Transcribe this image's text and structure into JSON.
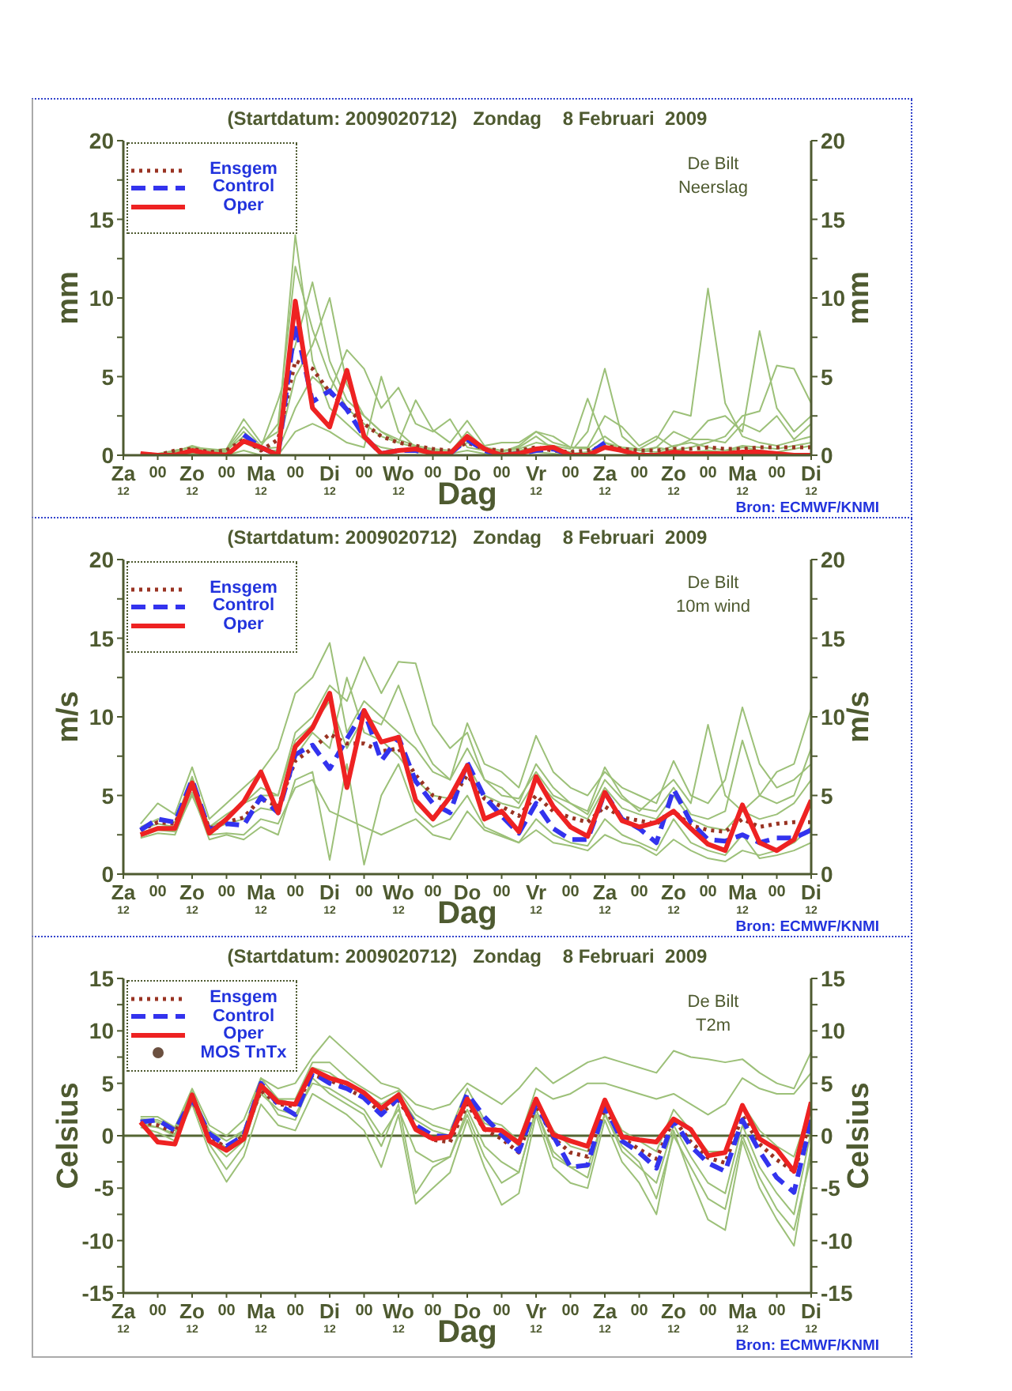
{
  "chart_data": [
    {
      "type": "line",
      "title": "(Startdatum: 2009020712)   Zondag    8 Februari  2009",
      "xlabel": "Dag",
      "ylabel": "mm",
      "y2label": "mm",
      "annotations": [
        "De Bilt",
        "Neerslag",
        "Bron: ECMWF/KNMI"
      ],
      "legend": "top left",
      "marker": "none",
      "line_style": "solid",
      "x": [
        "2009-02-07T18:00",
        "2009-02-08T00:00",
        "2009-02-08T06:00",
        "2009-02-08T12:00",
        "2009-02-08T18:00",
        "2009-02-09T00:00",
        "2009-02-09T06:00",
        "2009-02-09T12:00",
        "2009-02-09T18:00",
        "2009-02-10T00:00",
        "2009-02-10T06:00",
        "2009-02-10T12:00",
        "2009-02-10T18:00",
        "2009-02-11T00:00",
        "2009-02-11T06:00",
        "2009-02-11T12:00",
        "2009-02-11T18:00",
        "2009-02-12T00:00",
        "2009-02-12T06:00",
        "2009-02-12T12:00",
        "2009-02-12T18:00",
        "2009-02-13T00:00",
        "2009-02-13T06:00",
        "2009-02-13T12:00",
        "2009-02-13T18:00",
        "2009-02-14T00:00",
        "2009-02-14T06:00",
        "2009-02-14T12:00",
        "2009-02-14T18:00",
        "2009-02-15T00:00",
        "2009-02-15T06:00",
        "2009-02-15T12:00",
        "2009-02-15T18:00",
        "2009-02-16T00:00",
        "2009-02-16T06:00",
        "2009-02-16T12:00",
        "2009-02-16T18:00",
        "2009-02-17T00:00",
        "2009-02-17T06:00",
        "2009-02-17T12:00"
      ],
      "xlim": [
        "2009-02-07T12:00",
        "2009-02-17T12:00"
      ],
      "xticks": [
        {
          "value": "2009-02-07T12:00",
          "label": "Za\n12"
        },
        {
          "value": "2009-02-08T00:00",
          "label": "00"
        },
        {
          "value": "2009-02-08T12:00",
          "label": "Zo\n12"
        },
        {
          "value": "2009-02-09T00:00",
          "label": "00"
        },
        {
          "value": "2009-02-09T12:00",
          "label": "Ma\n12"
        },
        {
          "value": "2009-02-10T00:00",
          "label": "00"
        },
        {
          "value": "2009-02-10T12:00",
          "label": "Di\n12"
        },
        {
          "value": "2009-02-11T00:00",
          "label": "00"
        },
        {
          "value": "2009-02-11T12:00",
          "label": "Wo\n12"
        },
        {
          "value": "2009-02-12T00:00",
          "label": "00"
        },
        {
          "value": "2009-02-12T12:00",
          "label": "Do"
        },
        {
          "value": "2009-02-13T00:00",
          "label": "00"
        },
        {
          "value": "2009-02-13T12:00",
          "label": "Vr\n12"
        },
        {
          "value": "2009-02-14T00:00",
          "label": "00"
        },
        {
          "value": "2009-02-14T12:00",
          "label": "Za\n12"
        },
        {
          "value": "2009-02-15T00:00",
          "label": "00"
        },
        {
          "value": "2009-02-15T12:00",
          "label": "Zo\n12"
        },
        {
          "value": "2009-02-16T00:00",
          "label": "00"
        },
        {
          "value": "2009-02-16T12:00",
          "label": "Ma\n12"
        },
        {
          "value": "2009-02-17T00:00",
          "label": "00"
        },
        {
          "value": "2009-02-17T12:00",
          "label": "Di\n12"
        }
      ],
      "ylim": [
        0,
        20
      ],
      "yticks": [
        0,
        {
          "value": 2.5,
          "label": null
        },
        5,
        {
          "value": 7.5,
          "label": null
        },
        10,
        {
          "value": 12.5,
          "label": null
        },
        15,
        {
          "value": 17.5,
          "label": null
        },
        20
      ],
      "y2lim": [
        0,
        20
      ],
      "y2ticks": [
        0,
        {
          "value": 2.5,
          "label": null
        },
        5,
        {
          "value": 7.5,
          "label": null
        },
        10,
        {
          "value": 12.5,
          "label": null
        },
        15,
        {
          "value": 17.5,
          "label": null
        },
        20
      ],
      "series": [
        {
          "color": "#9cc078",
          "values": [
            0,
            0,
            0.2,
            0.6,
            0.3,
            0.4,
            2.3,
            0.8,
            1.5,
            14,
            6,
            3,
            2,
            1,
            0.5,
            0.3,
            0.2,
            0.1,
            0.2,
            1.5,
            0.4,
            0.1,
            0.3,
            0.5,
            0.3,
            0.1,
            0.2,
            0.8,
            0.3,
            0.1,
            0.1,
            0.4,
            0.2,
            0.3,
            0.2,
            0.5,
            0.3,
            0.2,
            0.4,
            0.6
          ]
        },
        {
          "color": "#9cc078",
          "values": [
            0,
            0.1,
            0.3,
            0.5,
            0.4,
            0.3,
            1.5,
            0.5,
            3.5,
            7,
            11,
            6,
            3.5,
            2.5,
            1.5,
            0.8,
            0.5,
            0.3,
            0.2,
            0.8,
            0.3,
            0.2,
            0.5,
            1.2,
            0.4,
            0.2,
            1.5,
            5.5,
            1.2,
            0.3,
            0.2,
            0.6,
            0.8,
            0.5,
            0.3,
            0.6,
            0.5,
            0.4,
            0.6,
            0.8
          ]
        },
        {
          "color": "#9cc078",
          "values": [
            0,
            0,
            0.2,
            0.3,
            0.2,
            0.3,
            1.2,
            0.4,
            0.5,
            5,
            7,
            10,
            4.5,
            2.5,
            1.5,
            1,
            0.6,
            0.4,
            0.3,
            1,
            0.5,
            0.3,
            0.4,
            0.8,
            0.6,
            0.4,
            3.6,
            0.8,
            0.5,
            0.4,
            1,
            2.8,
            2.5,
            10.6,
            3.3,
            1.2,
            0.8,
            0.6,
            0.9,
            1.2
          ]
        },
        {
          "color": "#9cc078",
          "values": [
            0,
            0,
            0.1,
            0.4,
            0.2,
            0.2,
            0.8,
            0.3,
            0.3,
            3,
            5,
            4,
            6.7,
            5.5,
            3,
            4.3,
            2,
            1.5,
            2.3,
            0.5,
            0.3,
            0.2,
            0.6,
            1.5,
            0.8,
            0.5,
            0.5,
            2.5,
            1.8,
            0.6,
            1.2,
            0.5,
            1,
            2.2,
            2.5,
            1.5,
            7.9,
            3,
            1.5,
            2.5
          ]
        },
        {
          "color": "#9cc078",
          "values": [
            0,
            0,
            0,
            0.1,
            0,
            0,
            0.3,
            0,
            0,
            1.5,
            2,
            1.5,
            0.8,
            0.5,
            5,
            1.5,
            0.5,
            0.2,
            0.1,
            0.3,
            0.1,
            0,
            0.1,
            0.2,
            0.1,
            0,
            0.1,
            0.5,
            0.2,
            0.1,
            0.5,
            0.3,
            0.5,
            0.8,
            1.2,
            2.5,
            2.8,
            5.7,
            5.5,
            3.3
          ]
        },
        {
          "color": "#9cc078",
          "values": [
            0,
            0,
            0.3,
            0.5,
            0.3,
            0.4,
            1.8,
            0.6,
            2,
            12,
            8,
            5,
            3,
            2,
            1.2,
            0.8,
            3.5,
            1.6,
            0.8,
            2.2,
            0.6,
            0.8,
            0.8,
            1.5,
            1.2,
            0.5,
            0.4,
            1.2,
            0.4,
            0.3,
            0.5,
            1.5,
            1,
            1,
            0.8,
            2,
            1.5,
            2.5,
            1,
            2
          ]
        },
        {
          "name": "Ensgem",
          "color": "#993322",
          "line_style": "dotted",
          "values": [
            0.1,
            0,
            0.3,
            0.4,
            0.2,
            0.3,
            1,
            0.3,
            1,
            6,
            5.5,
            4,
            3,
            2,
            1.2,
            0.8,
            0.6,
            0.4,
            0.3,
            0.8,
            0.4,
            0.3,
            0.3,
            0.5,
            0.3,
            0.2,
            0.3,
            0.6,
            0.4,
            0.3,
            0.3,
            0.4,
            0.4,
            0.5,
            0.4,
            0.4,
            0.5,
            0.5,
            0.5,
            0.5
          ]
        },
        {
          "name": "Control",
          "color": "#3333ee",
          "line_style": "dashed",
          "values": [
            null,
            null,
            null,
            null,
            null,
            null,
            1.3,
            0.5,
            0,
            8.4,
            3.4,
            4.1,
            2.9,
            1.2,
            0.1,
            0.3,
            0.3,
            0.1,
            0.1,
            1,
            0.3,
            0,
            0.1,
            0.3,
            0.4,
            0,
            0,
            0.8,
            null,
            null,
            null,
            null,
            null,
            null,
            null,
            null,
            null,
            null,
            null,
            null
          ]
        },
        {
          "name": "Oper",
          "color": "#ee2222",
          "line_style": "solid",
          "values": [
            0.1,
            0,
            0,
            0.3,
            0.1,
            0,
            0.9,
            0.5,
            0,
            9.8,
            3,
            1.8,
            5.4,
            1.2,
            0.1,
            0.3,
            0.4,
            0.1,
            0.1,
            1.2,
            0.4,
            0,
            0.1,
            0.4,
            0.5,
            0,
            0,
            0.5,
            0.3,
            0,
            0,
            0.2,
            0.1,
            0.1,
            0.1,
            0.2,
            0.2,
            0.1,
            0,
            0
          ]
        }
      ]
    },
    {
      "type": "line",
      "title": "(Startdatum: 2009020712)   Zondag    8 Februari  2009",
      "xlabel": "Dag",
      "ylabel": "m/s",
      "y2label": "m/s",
      "annotations": [
        "De Bilt",
        "10m wind",
        "Bron: ECMWF/KNMI"
      ],
      "legend": "top left",
      "marker": "none",
      "line_style": "solid",
      "x": [
        "2009-02-07T18:00",
        "2009-02-08T00:00",
        "2009-02-08T06:00",
        "2009-02-08T12:00",
        "2009-02-08T18:00",
        "2009-02-09T00:00",
        "2009-02-09T06:00",
        "2009-02-09T12:00",
        "2009-02-09T18:00",
        "2009-02-10T00:00",
        "2009-02-10T06:00",
        "2009-02-10T12:00",
        "2009-02-10T18:00",
        "2009-02-11T00:00",
        "2009-02-11T06:00",
        "2009-02-11T12:00",
        "2009-02-11T18:00",
        "2009-02-12T00:00",
        "2009-02-12T06:00",
        "2009-02-12T12:00",
        "2009-02-12T18:00",
        "2009-02-13T00:00",
        "2009-02-13T06:00",
        "2009-02-13T12:00",
        "2009-02-13T18:00",
        "2009-02-14T00:00",
        "2009-02-14T06:00",
        "2009-02-14T12:00",
        "2009-02-14T18:00",
        "2009-02-15T00:00",
        "2009-02-15T06:00",
        "2009-02-15T12:00",
        "2009-02-15T18:00",
        "2009-02-16T00:00",
        "2009-02-16T06:00",
        "2009-02-16T12:00",
        "2009-02-16T18:00",
        "2009-02-17T00:00",
        "2009-02-17T06:00",
        "2009-02-17T12:00"
      ],
      "xlim": [
        "2009-02-07T12:00",
        "2009-02-17T12:00"
      ],
      "xticks": [
        {
          "value": "2009-02-07T12:00",
          "label": "Za\n12"
        },
        {
          "value": "2009-02-08T00:00",
          "label": "00"
        },
        {
          "value": "2009-02-08T12:00",
          "label": "Zo\n12"
        },
        {
          "value": "2009-02-09T00:00",
          "label": "00"
        },
        {
          "value": "2009-02-09T12:00",
          "label": "Ma\n12"
        },
        {
          "value": "2009-02-10T00:00",
          "label": "00"
        },
        {
          "value": "2009-02-10T12:00",
          "label": "Di\n12"
        },
        {
          "value": "2009-02-11T00:00",
          "label": "00"
        },
        {
          "value": "2009-02-11T12:00",
          "label": "Wo\n12"
        },
        {
          "value": "2009-02-12T00:00",
          "label": "00"
        },
        {
          "value": "2009-02-12T12:00",
          "label": "Do"
        },
        {
          "value": "2009-02-13T00:00",
          "label": "00"
        },
        {
          "value": "2009-02-13T12:00",
          "label": "Vr\n12"
        },
        {
          "value": "2009-02-14T00:00",
          "label": "00"
        },
        {
          "value": "2009-02-14T12:00",
          "label": "Za\n12"
        },
        {
          "value": "2009-02-15T00:00",
          "label": "00"
        },
        {
          "value": "2009-02-15T12:00",
          "label": "Zo\n12"
        },
        {
          "value": "2009-02-16T00:00",
          "label": "00"
        },
        {
          "value": "2009-02-16T12:00",
          "label": "Ma\n12"
        },
        {
          "value": "2009-02-17T00:00",
          "label": "00"
        },
        {
          "value": "2009-02-17T12:00",
          "label": "Di\n12"
        }
      ],
      "ylim": [
        0,
        20
      ],
      "yticks": [
        0,
        {
          "value": 2.5,
          "label": null
        },
        5,
        {
          "value": 7.5,
          "label": null
        },
        10,
        {
          "value": 12.5,
          "label": null
        },
        15,
        {
          "value": 17.5,
          "label": null
        },
        20
      ],
      "y2lim": [
        0,
        20
      ],
      "y2ticks": [
        0,
        {
          "value": 2.5,
          "label": null
        },
        5,
        {
          "value": 7.5,
          "label": null
        },
        10,
        {
          "value": 12.5,
          "label": null
        },
        15,
        {
          "value": 17.5,
          "label": null
        },
        20
      ],
      "series": [
        {
          "color": "#9cc078",
          "values": [
            3.2,
            4.5,
            3.8,
            6.8,
            3.5,
            4.5,
            5.5,
            6.5,
            8,
            11.5,
            12.5,
            14.7,
            9,
            11,
            10,
            9,
            8,
            6.5,
            6,
            9.6,
            7,
            6.5,
            5.5,
            8.8,
            6.5,
            5.5,
            5,
            6.5,
            5.5,
            5,
            4.5,
            7.2,
            5,
            4.5,
            6,
            10.6,
            7,
            5.5,
            6,
            7
          ]
        },
        {
          "color": "#9cc078",
          "values": [
            2.3,
            2.6,
            2.5,
            5.2,
            2.2,
            2.5,
            2.2,
            3,
            2.5,
            6,
            6.5,
            0.9,
            7,
            0.6,
            5,
            7,
            4,
            3,
            3.5,
            5,
            3,
            2.5,
            2,
            3.5,
            2.5,
            2,
            1.8,
            3.5,
            2.5,
            2,
            1.5,
            3.5,
            2,
            1.5,
            1.2,
            2.5,
            1,
            1.2,
            1.5,
            2
          ]
        },
        {
          "color": "#9cc078",
          "values": [
            2.8,
            3.2,
            3,
            6,
            3,
            3.5,
            4.5,
            5.5,
            5,
            9,
            10,
            12,
            11,
            13.8,
            11.5,
            13.5,
            13.4,
            9.5,
            8,
            9,
            6,
            5.5,
            4.5,
            7,
            5.5,
            4.5,
            4,
            6.8,
            5,
            4,
            5,
            6,
            4.5,
            9.5,
            5,
            4,
            5,
            6.5,
            7,
            10.5
          ]
        },
        {
          "color": "#9cc078",
          "values": [
            2.6,
            3,
            3,
            5.5,
            2.8,
            3.2,
            3.5,
            4.2,
            4,
            7.5,
            9,
            8,
            12.5,
            9,
            8.5,
            7.5,
            6,
            5,
            4.8,
            7,
            5,
            4.5,
            4.2,
            6,
            4.8,
            4,
            3.5,
            5.5,
            4.2,
            3.8,
            3.5,
            5,
            3.5,
            3,
            2.8,
            4,
            3.5,
            3.8,
            4.5,
            6
          ]
        },
        {
          "color": "#9cc078",
          "values": [
            2.4,
            2.8,
            2.7,
            5,
            2.5,
            2.6,
            2.5,
            3.5,
            3.2,
            5.5,
            6,
            4,
            3.5,
            3,
            2.5,
            3,
            3.5,
            2.5,
            2.2,
            4,
            2.8,
            2.4,
            2,
            2.8,
            2,
            1.8,
            1.5,
            2.5,
            2,
            1.8,
            1.2,
            2.2,
            1.5,
            1,
            0.8,
            1.5,
            1.2,
            1.5,
            2,
            3
          ]
        },
        {
          "color": "#9cc078",
          "values": [
            3,
            3.5,
            3.3,
            6.2,
            3,
            3.8,
            4.5,
            5,
            5,
            8.5,
            9.5,
            11,
            8,
            10,
            9.5,
            12,
            9,
            7,
            6,
            8,
            6,
            5,
            4.8,
            6.5,
            5,
            4.5,
            3.8,
            6,
            4.8,
            4.2,
            4,
            5.5,
            3.8,
            3.5,
            4,
            8.5,
            5,
            4.5,
            5,
            8
          ]
        },
        {
          "name": "Ensgem",
          "color": "#993322",
          "line_style": "dotted",
          "values": [
            2.8,
            3.3,
            3.2,
            5.7,
            2.9,
            3.3,
            3.6,
            4.8,
            4.3,
            7.2,
            8,
            8.9,
            8.3,
            8.3,
            7.8,
            8,
            6.3,
            5,
            4.6,
            6.3,
            4.8,
            4.3,
            3.7,
            5,
            4,
            3.6,
            3.3,
            4.3,
            3.6,
            3.4,
            3.2,
            4,
            3.1,
            2.8,
            2.7,
            3.5,
            3,
            3.2,
            3.3,
            3.3
          ]
        },
        {
          "name": "Control",
          "color": "#3333ee",
          "line_style": "dashed",
          "values": [
            2.8,
            3.5,
            3.3,
            6,
            2.8,
            3.2,
            3.1,
            4.9,
            3.9,
            7.6,
            8.2,
            6.7,
            8.6,
            10.4,
            7.2,
            8.7,
            5.9,
            4.5,
            3.9,
            7.1,
            4.9,
            3.7,
            2.6,
            4.5,
            2.9,
            2.2,
            2.2,
            5.2,
            3.5,
            2.9,
            2,
            5.4,
            3.3,
            2.2,
            2.1,
            2.5,
            2,
            2.3,
            2.3,
            2.8
          ]
        },
        {
          "name": "Oper",
          "color": "#ee2222",
          "line_style": "solid",
          "values": [
            2.5,
            2.9,
            2.9,
            5.8,
            2.6,
            3.5,
            4.6,
            6.5,
            3.9,
            8.1,
            9.3,
            11.5,
            5.5,
            10.4,
            8.4,
            8.7,
            4.7,
            3.5,
            4.9,
            6.9,
            3.5,
            4,
            2.7,
            6.2,
            4.3,
            3,
            2.4,
            5.2,
            3.4,
            3,
            3.3,
            4,
            2.9,
            1.9,
            1.5,
            4.4,
            2,
            1.5,
            2.2,
            4.7
          ]
        }
      ]
    },
    {
      "type": "line",
      "title": "(Startdatum: 2009020712)   Zondag    8 Februari  2009",
      "xlabel": "Dag",
      "ylabel": "Celsius",
      "y2label": "Celsius",
      "annotations": [
        "De Bilt",
        "T2m",
        "Bron: ECMWF/KNMI"
      ],
      "legend": "top left",
      "marker": "none",
      "line_style": "solid",
      "x": [
        "2009-02-07T18:00",
        "2009-02-08T00:00",
        "2009-02-08T06:00",
        "2009-02-08T12:00",
        "2009-02-08T18:00",
        "2009-02-09T00:00",
        "2009-02-09T06:00",
        "2009-02-09T12:00",
        "2009-02-09T18:00",
        "2009-02-10T00:00",
        "2009-02-10T06:00",
        "2009-02-10T12:00",
        "2009-02-10T18:00",
        "2009-02-11T00:00",
        "2009-02-11T06:00",
        "2009-02-11T12:00",
        "2009-02-11T18:00",
        "2009-02-12T00:00",
        "2009-02-12T06:00",
        "2009-02-12T12:00",
        "2009-02-12T18:00",
        "2009-02-13T00:00",
        "2009-02-13T06:00",
        "2009-02-13T12:00",
        "2009-02-13T18:00",
        "2009-02-14T00:00",
        "2009-02-14T06:00",
        "2009-02-14T12:00",
        "2009-02-14T18:00",
        "2009-02-15T00:00",
        "2009-02-15T06:00",
        "2009-02-15T12:00",
        "2009-02-15T18:00",
        "2009-02-16T00:00",
        "2009-02-16T06:00",
        "2009-02-16T12:00",
        "2009-02-16T18:00",
        "2009-02-17T00:00",
        "2009-02-17T06:00",
        "2009-02-17T12:00"
      ],
      "xlim": [
        "2009-02-07T12:00",
        "2009-02-17T12:00"
      ],
      "xticks": [
        {
          "value": "2009-02-07T12:00",
          "label": "Za\n12"
        },
        {
          "value": "2009-02-08T00:00",
          "label": "00"
        },
        {
          "value": "2009-02-08T12:00",
          "label": "Zo\n12"
        },
        {
          "value": "2009-02-09T00:00",
          "label": "00"
        },
        {
          "value": "2009-02-09T12:00",
          "label": "Ma\n12"
        },
        {
          "value": "2009-02-10T00:00",
          "label": "00"
        },
        {
          "value": "2009-02-10T12:00",
          "label": "Di\n12"
        },
        {
          "value": "2009-02-11T00:00",
          "label": "00"
        },
        {
          "value": "2009-02-11T12:00",
          "label": "Wo\n12"
        },
        {
          "value": "2009-02-12T00:00",
          "label": "00"
        },
        {
          "value": "2009-02-12T12:00",
          "label": "Do"
        },
        {
          "value": "2009-02-13T00:00",
          "label": "00"
        },
        {
          "value": "2009-02-13T12:00",
          "label": "Vr\n12"
        },
        {
          "value": "2009-02-14T00:00",
          "label": "00"
        },
        {
          "value": "2009-02-14T12:00",
          "label": "Za\n12"
        },
        {
          "value": "2009-02-15T00:00",
          "label": "00"
        },
        {
          "value": "2009-02-15T12:00",
          "label": "Zo\n12"
        },
        {
          "value": "2009-02-16T00:00",
          "label": "00"
        },
        {
          "value": "2009-02-16T12:00",
          "label": "Ma\n12"
        },
        {
          "value": "2009-02-17T00:00",
          "label": "00"
        },
        {
          "value": "2009-02-17T12:00",
          "label": "Di\n12"
        }
      ],
      "ylim": [
        -15,
        15
      ],
      "yticks": [
        -15,
        {
          "value": -12.5,
          "label": null
        },
        -10,
        {
          "value": -7.5,
          "label": null
        },
        -5,
        {
          "value": -2.5,
          "label": null
        },
        0,
        {
          "value": 2.5,
          "label": null
        },
        5,
        {
          "value": 7.5,
          "label": null
        },
        10,
        {
          "value": 12.5,
          "label": null
        },
        15
      ],
      "y2lim": [
        -15,
        15
      ],
      "y2ticks": [
        -15,
        {
          "value": -12.5,
          "label": null
        },
        -10,
        {
          "value": -7.5,
          "label": null
        },
        -5,
        {
          "value": -2.5,
          "label": null
        },
        0,
        {
          "value": 2.5,
          "label": null
        },
        5,
        {
          "value": 7.5,
          "label": null
        },
        10,
        {
          "value": 12.5,
          "label": null
        },
        15
      ],
      "ref_lines": [
        {
          "axis": "y",
          "value": 0,
          "color": "#556633"
        }
      ],
      "series": [
        {
          "color": "#9cc078",
          "values": [
            1.8,
            1.8,
            0.8,
            4.5,
            1,
            0,
            1.5,
            5.5,
            4.5,
            5,
            7.5,
            9.5,
            8,
            6.5,
            5,
            4.5,
            3,
            2.5,
            3,
            5,
            4,
            3,
            4.5,
            6.5,
            5,
            6,
            7,
            7.5,
            7,
            6.5,
            6,
            8.1,
            7.5,
            7.3,
            7,
            7.3,
            6,
            5,
            4.5,
            8
          ]
        },
        {
          "color": "#9cc078",
          "values": [
            0.8,
            0.3,
            -0.5,
            3,
            -1.5,
            -4.4,
            -2,
            3,
            1,
            0.5,
            4,
            3,
            2,
            0.5,
            -3,
            2,
            -6.5,
            -5,
            -3.5,
            1.5,
            -3,
            -6.6,
            -5.5,
            2,
            -3,
            -4.5,
            -5,
            1.5,
            -2.5,
            -4.5,
            -7.5,
            0.5,
            -4,
            -8,
            -9,
            -0.5,
            -5,
            -8,
            -10.5,
            -1
          ]
        },
        {
          "color": "#9cc078",
          "values": [
            1.5,
            1.3,
            0.5,
            4,
            0.5,
            -0.5,
            0.5,
            5.5,
            3.5,
            3.5,
            7,
            7,
            5.5,
            4.5,
            3.5,
            4.3,
            2,
            1,
            0.5,
            4.5,
            1.5,
            1,
            -0.5,
            4.5,
            3.5,
            4,
            5,
            5,
            4.5,
            4,
            3.5,
            4,
            3,
            2,
            3,
            5.5,
            4.5,
            4,
            4,
            6
          ]
        },
        {
          "color": "#9cc078",
          "values": [
            1,
            0.8,
            0,
            3.2,
            -0.5,
            -2,
            -0.5,
            4,
            2.5,
            2,
            5,
            4.5,
            3.5,
            2.5,
            0,
            2.5,
            -1.5,
            -2.5,
            -2,
            2.5,
            -1,
            -2.5,
            -3.5,
            2.5,
            -1.5,
            -3,
            -4,
            2.2,
            -1.5,
            -3,
            -4.5,
            1,
            -2,
            -4.5,
            -5.5,
            1,
            -3,
            -5.5,
            -7.5,
            0.5
          ]
        },
        {
          "color": "#9cc078",
          "values": [
            1.6,
            1.5,
            0.8,
            4.2,
            0.2,
            -1.2,
            0.5,
            5,
            3.5,
            3,
            6.5,
            6,
            4.8,
            4,
            3,
            4,
            1.5,
            0.5,
            0,
            3.8,
            1.2,
            0.5,
            -1,
            3.5,
            0.5,
            -1,
            -1.5,
            3.5,
            0.5,
            -0.5,
            -1.5,
            2.5,
            0.5,
            -1.5,
            -1.5,
            3,
            0.5,
            -1,
            -2,
            3
          ]
        },
        {
          "color": "#9cc078",
          "values": [
            1.2,
            0.8,
            0.2,
            3.6,
            -0.8,
            -3.2,
            -1,
            4.5,
            2,
            1.5,
            5.5,
            4,
            3,
            2,
            -1,
            3,
            -5.5,
            -3,
            -2,
            2,
            -2,
            -4.5,
            -3.5,
            2.5,
            -2,
            -3,
            -3,
            2,
            -1,
            -2.5,
            -6,
            0,
            -3,
            -6,
            -7,
            0,
            -4,
            -7,
            -9,
            -2
          ]
        },
        {
          "name": "Ensgem",
          "color": "#993322",
          "line_style": "dotted",
          "values": [
            1.3,
            1,
            0.3,
            3.5,
            0,
            -1.2,
            0,
            4.3,
            3,
            2.8,
            5.8,
            5.3,
            4.5,
            3.6,
            2.2,
            3.4,
            0.8,
            -0.4,
            -0.6,
            3,
            0.6,
            -0.3,
            -1.6,
            2.9,
            -0.2,
            -1.6,
            -2,
            2.6,
            -0.2,
            -1.3,
            -2.2,
            1.6,
            -0.6,
            -2.1,
            -2.6,
            1.9,
            -0.8,
            -2.3,
            -3.4,
            1.5
          ]
        },
        {
          "name": "Control",
          "color": "#3333ee",
          "line_style": "dashed",
          "values": [
            1.3,
            1.5,
            0.5,
            3.5,
            0.2,
            -1,
            0,
            5,
            3,
            2,
            6,
            5,
            4.5,
            3.6,
            2,
            3.6,
            1,
            0,
            -0.1,
            4,
            1.8,
            0.1,
            -1.5,
            3,
            0,
            -3,
            -2.8,
            2.8,
            -0.5,
            -1.6,
            -3.1,
            1.5,
            -1,
            -2.6,
            -3.4,
            1.5,
            -1.5,
            -4,
            -5.4,
            1.5
          ]
        },
        {
          "name": "Oper",
          "color": "#ee2222",
          "line_style": "solid",
          "values": [
            1.3,
            -0.6,
            -0.8,
            3.9,
            -0.5,
            -1.4,
            -0.3,
            4.8,
            3.2,
            3,
            6.3,
            5.5,
            5,
            4.1,
            2.6,
            3.9,
            0.6,
            -0.3,
            -0.1,
            3.5,
            0.6,
            0.5,
            -0.7,
            3.5,
            0.1,
            -0.5,
            -1,
            3.4,
            -0.1,
            -0.4,
            -0.6,
            1.6,
            0.6,
            -1.9,
            -1.6,
            2.9,
            -0.3,
            -1.3,
            -3.4,
            3.2
          ]
        },
        {
          "name": "MOS TnTx",
          "type": "scatter",
          "marker": "circle",
          "color": "#6b5040",
          "values": [
            null,
            null,
            null,
            null,
            null,
            null,
            null,
            null,
            null,
            null,
            null,
            null,
            null,
            null,
            null,
            null,
            null,
            null,
            null,
            null,
            null,
            null,
            null,
            null,
            null,
            null,
            null,
            null,
            null,
            null,
            null,
            null,
            null,
            null,
            null,
            null,
            null,
            null,
            null,
            null
          ]
        }
      ]
    }
  ]
}
